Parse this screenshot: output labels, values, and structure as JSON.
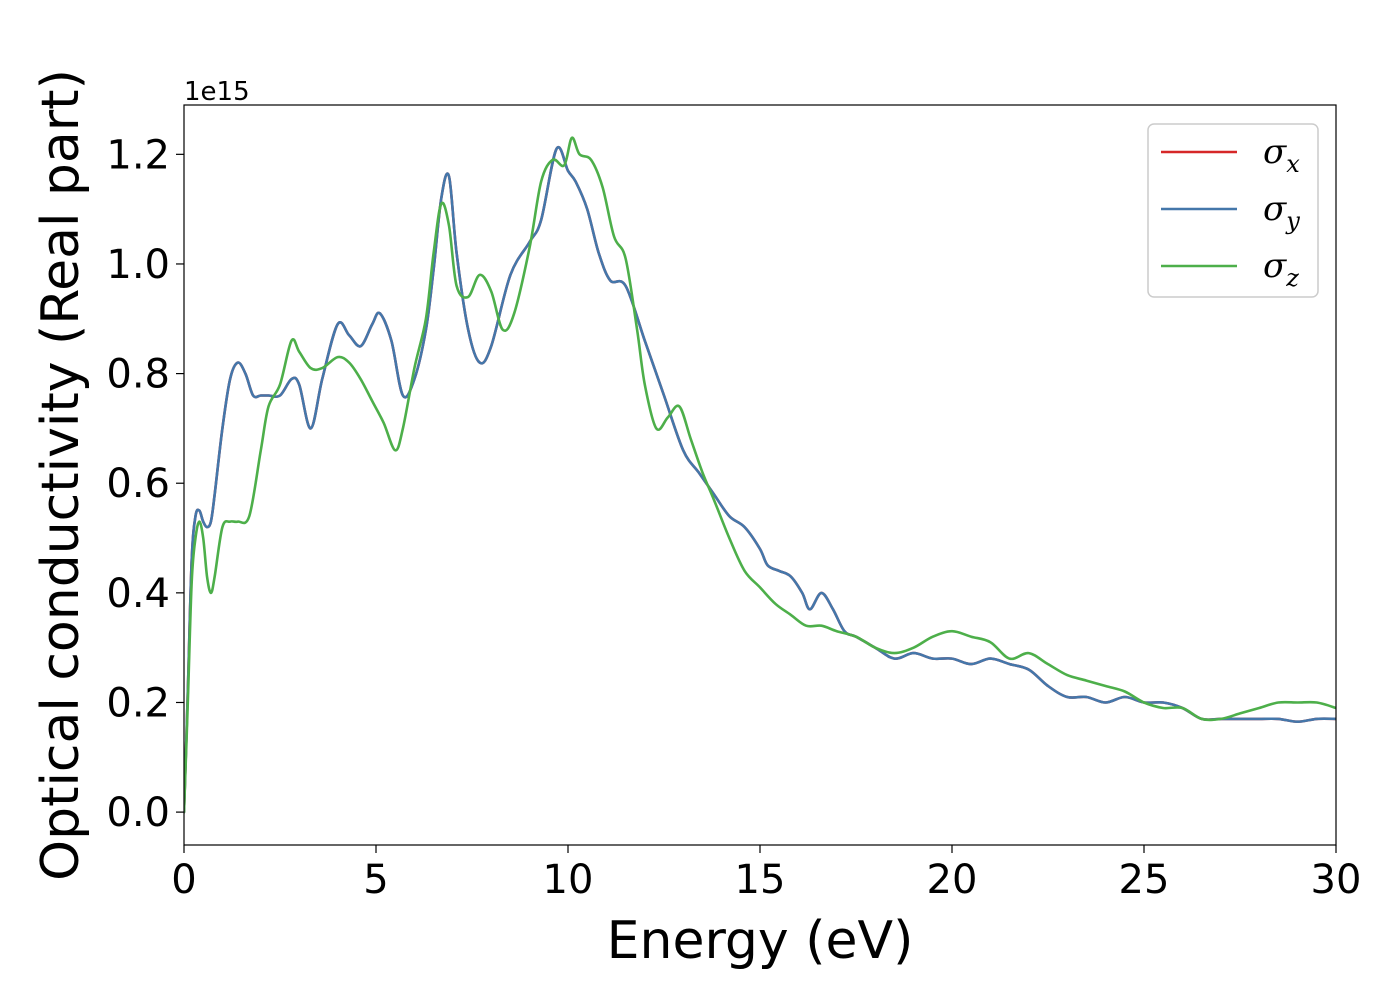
{
  "chart_data": {
    "type": "line",
    "xlabel": "Energy (eV)",
    "ylabel": "Optical conductivity (Real part)",
    "y_offset_label": "1e15",
    "xlim": [
      0,
      30
    ],
    "ylim": [
      -0.06,
      1.29
    ],
    "x_ticks": [
      0,
      5,
      10,
      15,
      20,
      25,
      30
    ],
    "x_tick_labels": [
      "0",
      "5",
      "10",
      "15",
      "20",
      "25",
      "30"
    ],
    "y_ticks": [
      0.0,
      0.2,
      0.4,
      0.6,
      0.8,
      1.0,
      1.2
    ],
    "y_tick_labels": [
      "0.0",
      "0.2",
      "0.4",
      "0.6",
      "0.8",
      "1.0",
      "1.2"
    ],
    "grid": false,
    "legend_position": "top-right",
    "series": [
      {
        "name": "σx",
        "symbol": "σ",
        "subscript": "x",
        "color": "#d62728",
        "x": [
          0,
          0.1,
          0.2,
          0.3,
          0.4,
          0.5,
          0.6,
          0.7,
          0.8,
          1.0,
          1.2,
          1.4,
          1.6,
          1.8,
          2.0,
          2.2,
          2.5,
          2.8,
          3.0,
          3.3,
          3.6,
          4.0,
          4.3,
          4.6,
          4.9,
          5.1,
          5.4,
          5.7,
          6.0,
          6.3,
          6.5,
          6.7,
          6.9,
          7.1,
          7.4,
          7.7,
          8.0,
          8.5,
          9.0,
          9.3,
          9.7,
          10.0,
          10.2,
          10.5,
          10.8,
          11.1,
          11.5,
          12.0,
          12.5,
          13.0,
          13.4,
          13.8,
          14.2,
          14.6,
          15.0,
          15.2,
          15.5,
          15.8,
          16.1,
          16.3,
          16.6,
          16.9,
          17.2,
          17.5,
          18.0,
          18.5,
          19.0,
          19.5,
          20.0,
          20.5,
          21.0,
          21.5,
          22.0,
          22.5,
          23.0,
          23.5,
          24.0,
          24.5,
          25.0,
          25.5,
          26.0,
          26.5,
          27.0,
          27.5,
          28.0,
          28.5,
          29.0,
          29.5,
          30.0
        ],
        "values": [
          0.0,
          0.22,
          0.46,
          0.54,
          0.55,
          0.53,
          0.52,
          0.53,
          0.58,
          0.7,
          0.79,
          0.82,
          0.8,
          0.76,
          0.76,
          0.76,
          0.76,
          0.79,
          0.78,
          0.7,
          0.79,
          0.89,
          0.87,
          0.85,
          0.89,
          0.91,
          0.86,
          0.76,
          0.79,
          0.88,
          0.99,
          1.12,
          1.16,
          1.02,
          0.88,
          0.82,
          0.85,
          0.98,
          1.04,
          1.08,
          1.21,
          1.17,
          1.15,
          1.1,
          1.02,
          0.97,
          0.96,
          0.86,
          0.76,
          0.66,
          0.62,
          0.58,
          0.54,
          0.52,
          0.48,
          0.45,
          0.44,
          0.43,
          0.4,
          0.37,
          0.4,
          0.37,
          0.33,
          0.32,
          0.3,
          0.28,
          0.29,
          0.28,
          0.28,
          0.27,
          0.28,
          0.27,
          0.26,
          0.23,
          0.21,
          0.21,
          0.2,
          0.21,
          0.2,
          0.2,
          0.19,
          0.17,
          0.17,
          0.17,
          0.17,
          0.17,
          0.165,
          0.17,
          0.17
        ]
      },
      {
        "name": "σy",
        "symbol": "σ",
        "subscript": "y",
        "color": "#4477aa",
        "x": [
          0,
          0.1,
          0.2,
          0.3,
          0.4,
          0.5,
          0.6,
          0.7,
          0.8,
          1.0,
          1.2,
          1.4,
          1.6,
          1.8,
          2.0,
          2.2,
          2.5,
          2.8,
          3.0,
          3.3,
          3.6,
          4.0,
          4.3,
          4.6,
          4.9,
          5.1,
          5.4,
          5.7,
          6.0,
          6.3,
          6.5,
          6.7,
          6.9,
          7.1,
          7.4,
          7.7,
          8.0,
          8.5,
          9.0,
          9.3,
          9.7,
          10.0,
          10.2,
          10.5,
          10.8,
          11.1,
          11.5,
          12.0,
          12.5,
          13.0,
          13.4,
          13.8,
          14.2,
          14.6,
          15.0,
          15.2,
          15.5,
          15.8,
          16.1,
          16.3,
          16.6,
          16.9,
          17.2,
          17.5,
          18.0,
          18.5,
          19.0,
          19.5,
          20.0,
          20.5,
          21.0,
          21.5,
          22.0,
          22.5,
          23.0,
          23.5,
          24.0,
          24.5,
          25.0,
          25.5,
          26.0,
          26.5,
          27.0,
          27.5,
          28.0,
          28.5,
          29.0,
          29.5,
          30.0
        ],
        "values": [
          0.0,
          0.22,
          0.46,
          0.54,
          0.55,
          0.53,
          0.52,
          0.53,
          0.58,
          0.7,
          0.79,
          0.82,
          0.8,
          0.76,
          0.76,
          0.76,
          0.76,
          0.79,
          0.78,
          0.7,
          0.79,
          0.89,
          0.87,
          0.85,
          0.89,
          0.91,
          0.86,
          0.76,
          0.79,
          0.88,
          0.99,
          1.12,
          1.16,
          1.02,
          0.88,
          0.82,
          0.85,
          0.98,
          1.04,
          1.08,
          1.21,
          1.17,
          1.15,
          1.1,
          1.02,
          0.97,
          0.96,
          0.86,
          0.76,
          0.66,
          0.62,
          0.58,
          0.54,
          0.52,
          0.48,
          0.45,
          0.44,
          0.43,
          0.4,
          0.37,
          0.4,
          0.37,
          0.33,
          0.32,
          0.3,
          0.28,
          0.29,
          0.28,
          0.28,
          0.27,
          0.28,
          0.27,
          0.26,
          0.23,
          0.21,
          0.21,
          0.2,
          0.21,
          0.2,
          0.2,
          0.19,
          0.17,
          0.17,
          0.17,
          0.17,
          0.17,
          0.165,
          0.17,
          0.17
        ]
      },
      {
        "name": "σz",
        "symbol": "σ",
        "subscript": "z",
        "color": "#4daf4a",
        "x": [
          0,
          0.1,
          0.2,
          0.3,
          0.4,
          0.5,
          0.6,
          0.7,
          0.8,
          1.0,
          1.2,
          1.4,
          1.7,
          2.0,
          2.2,
          2.5,
          2.8,
          3.0,
          3.3,
          3.6,
          4.0,
          4.3,
          4.6,
          4.9,
          5.2,
          5.5,
          5.7,
          6.0,
          6.3,
          6.5,
          6.7,
          6.9,
          7.1,
          7.4,
          7.7,
          8.0,
          8.3,
          8.6,
          9.0,
          9.3,
          9.6,
          9.9,
          10.1,
          10.3,
          10.6,
          10.9,
          11.2,
          11.5,
          11.8,
          12.0,
          12.3,
          12.6,
          12.9,
          13.2,
          13.5,
          13.8,
          14.2,
          14.6,
          15.0,
          15.4,
          15.8,
          16.2,
          16.6,
          17.0,
          17.5,
          18.0,
          18.5,
          19.0,
          19.5,
          20.0,
          20.5,
          21.0,
          21.5,
          22.0,
          22.5,
          23.0,
          23.5,
          24.0,
          24.5,
          25.0,
          25.5,
          26.0,
          26.5,
          27.0,
          27.5,
          28.0,
          28.5,
          29.0,
          29.5,
          30.0
        ],
        "values": [
          0.0,
          0.2,
          0.42,
          0.5,
          0.53,
          0.5,
          0.43,
          0.4,
          0.43,
          0.52,
          0.53,
          0.53,
          0.54,
          0.66,
          0.74,
          0.78,
          0.86,
          0.84,
          0.81,
          0.81,
          0.83,
          0.82,
          0.79,
          0.75,
          0.71,
          0.66,
          0.7,
          0.81,
          0.9,
          1.02,
          1.11,
          1.07,
          0.96,
          0.94,
          0.98,
          0.95,
          0.88,
          0.91,
          1.03,
          1.15,
          1.19,
          1.18,
          1.23,
          1.2,
          1.19,
          1.14,
          1.05,
          1.01,
          0.88,
          0.78,
          0.7,
          0.72,
          0.74,
          0.68,
          0.62,
          0.57,
          0.5,
          0.44,
          0.41,
          0.38,
          0.36,
          0.34,
          0.34,
          0.33,
          0.32,
          0.3,
          0.29,
          0.3,
          0.32,
          0.33,
          0.32,
          0.31,
          0.28,
          0.29,
          0.27,
          0.25,
          0.24,
          0.23,
          0.22,
          0.2,
          0.19,
          0.19,
          0.17,
          0.17,
          0.18,
          0.19,
          0.2,
          0.2,
          0.2,
          0.19
        ]
      }
    ]
  }
}
